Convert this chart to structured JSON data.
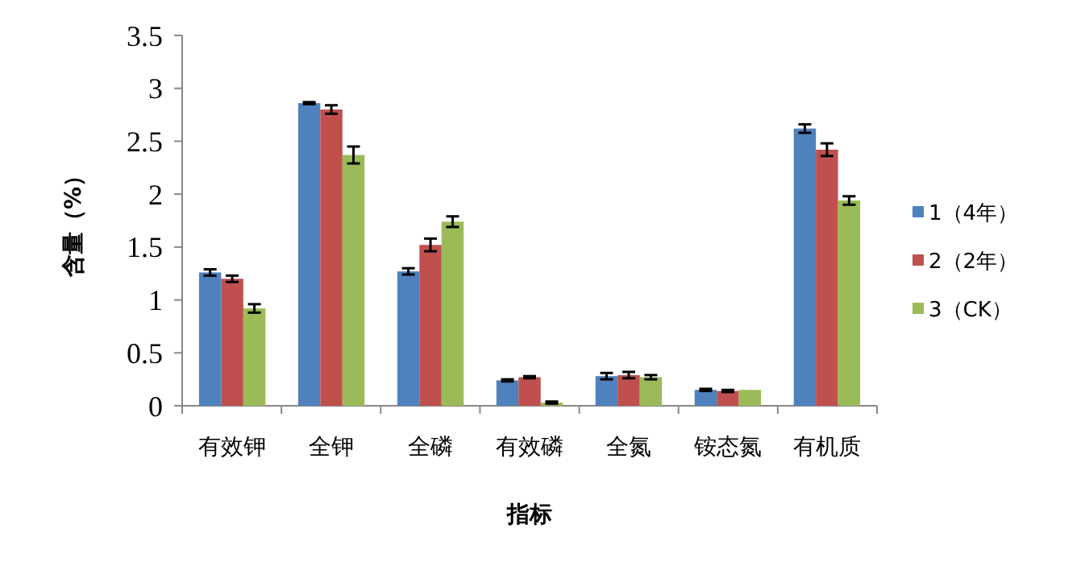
{
  "chart_data": {
    "type": "bar",
    "xlabel": "指标",
    "ylabel": "含量（%）",
    "categories": [
      "有效钾",
      "全钾",
      "全磷",
      "有效磷",
      "全氮",
      "铵态氮",
      "有机质"
    ],
    "series": [
      {
        "name": "1（4年）",
        "color": "#4f81bd",
        "values": [
          1.26,
          2.86,
          1.27,
          0.24,
          0.28,
          0.15,
          2.62
        ],
        "errors": [
          0.03,
          0.01,
          0.03,
          0.01,
          0.03,
          0.01,
          0.04
        ]
      },
      {
        "name": "2（2年）",
        "color": "#c0504d",
        "values": [
          1.2,
          2.8,
          1.52,
          0.27,
          0.29,
          0.14,
          2.42
        ],
        "errors": [
          0.03,
          0.04,
          0.06,
          0.01,
          0.03,
          0.01,
          0.06
        ]
      },
      {
        "name": "3（CK）",
        "color": "#9bbb59",
        "values": [
          0.92,
          2.37,
          1.74,
          0.03,
          0.27,
          0.15,
          1.94
        ],
        "errors": [
          0.04,
          0.08,
          0.05,
          0.01,
          0.02,
          null,
          0.04
        ]
      }
    ],
    "ylim": [
      0,
      3.5
    ],
    "yticks": [
      0,
      0.5,
      1,
      1.5,
      2,
      2.5,
      3,
      3.5
    ],
    "grid": false,
    "legend": "right"
  }
}
